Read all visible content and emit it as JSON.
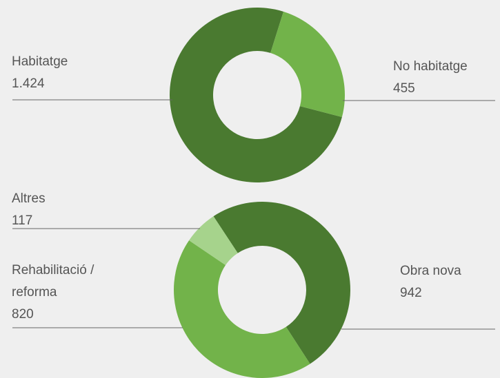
{
  "chart_data": [
    {
      "type": "donut",
      "categories": [
        "Habitatge",
        "No habitatge"
      ],
      "values": [
        1424,
        455
      ],
      "value_labels": [
        "1.424",
        "455"
      ],
      "colors": [
        "#4a7a30",
        "#72b34a"
      ]
    },
    {
      "type": "donut",
      "categories": [
        "Obra nova",
        "Rehabilitació / reforma",
        "Altres"
      ],
      "values": [
        942,
        820,
        117
      ],
      "value_labels": [
        "942",
        "820",
        "117"
      ],
      "colors": [
        "#4a7a30",
        "#72b34a",
        "#a6d38c"
      ]
    }
  ]
}
